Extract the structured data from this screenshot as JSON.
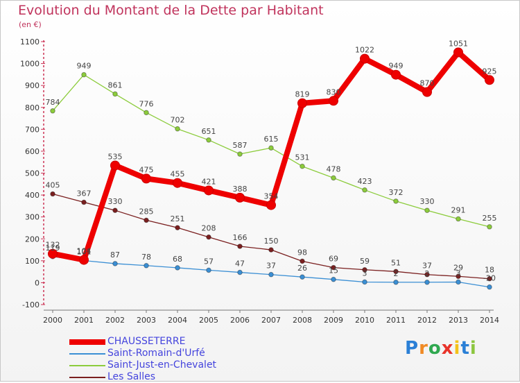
{
  "title": "Evolution du Montant de la Dette par Habitant",
  "unit": "(en €)",
  "logo": {
    "text": "Proxiti",
    "letters": [
      "P",
      "r",
      "o",
      "x",
      "i",
      "t",
      "i"
    ],
    "colors": [
      "#2a7fd6",
      "#f08a24",
      "#2fa84f",
      "#e8332a",
      "#f3c21b",
      "#2a7fd6",
      "#8cc63f"
    ]
  },
  "chart_data": {
    "type": "line",
    "title": "Evolution du Montant de la Dette par Habitant",
    "ylabel": "(en €)",
    "xlabel": "",
    "x": [
      "2000",
      "2001",
      "2002",
      "2003",
      "2004",
      "2005",
      "2006",
      "2007",
      "2008",
      "2009",
      "2010",
      "2011",
      "2012",
      "2013",
      "2014"
    ],
    "ylim": [
      -100,
      1100
    ],
    "yticks": [
      -100,
      0,
      100,
      200,
      300,
      400,
      500,
      600,
      700,
      800,
      900,
      1000,
      1100
    ],
    "grid": false,
    "legend_position": "bottom-left",
    "series": [
      {
        "name": "CHAUSSETERRE",
        "color": "#ee0000",
        "values": [
          132,
          104,
          535,
          475,
          455,
          421,
          388,
          354,
          819,
          830,
          1022,
          949,
          870,
          1051,
          925
        ],
        "labels": [
          "132",
          "104",
          "535",
          "475",
          "455",
          "421",
          "388",
          "354",
          "819",
          "830",
          "1022",
          "949",
          "870",
          "1051",
          "925"
        ]
      },
      {
        "name": "Saint-Romain-d'Urfé",
        "color": "#3b8fd4",
        "values": [
          119,
          101,
          87,
          78,
          68,
          57,
          47,
          37,
          26,
          15,
          3,
          2,
          2,
          3,
          -20
        ],
        "labels": [
          "119",
          "101",
          "87",
          "78",
          "68",
          "57",
          "47",
          "37",
          "26",
          "15",
          "3",
          "2",
          "2",
          "3",
          "-20"
        ]
      },
      {
        "name": "Saint-Just-en-Chevalet",
        "color": "#8ccc3c",
        "values": [
          784,
          949,
          861,
          776,
          702,
          651,
          587,
          615,
          531,
          478,
          423,
          372,
          330,
          291,
          255
        ],
        "labels": [
          "784",
          "949",
          "861",
          "776",
          "702",
          "651",
          "587",
          "615",
          "531",
          "478",
          "423",
          "372",
          "330",
          "291",
          "255"
        ]
      },
      {
        "name": "Les Salles",
        "color": "#7a1f1f",
        "values": [
          405,
          367,
          330,
          285,
          251,
          208,
          166,
          150,
          98,
          69,
          59,
          51,
          37,
          29,
          18
        ],
        "labels": [
          "405",
          "367",
          "330",
          "285",
          "251",
          "208",
          "166",
          "150",
          "98",
          "69",
          "59",
          "51",
          "37",
          "29",
          "18"
        ]
      }
    ]
  }
}
